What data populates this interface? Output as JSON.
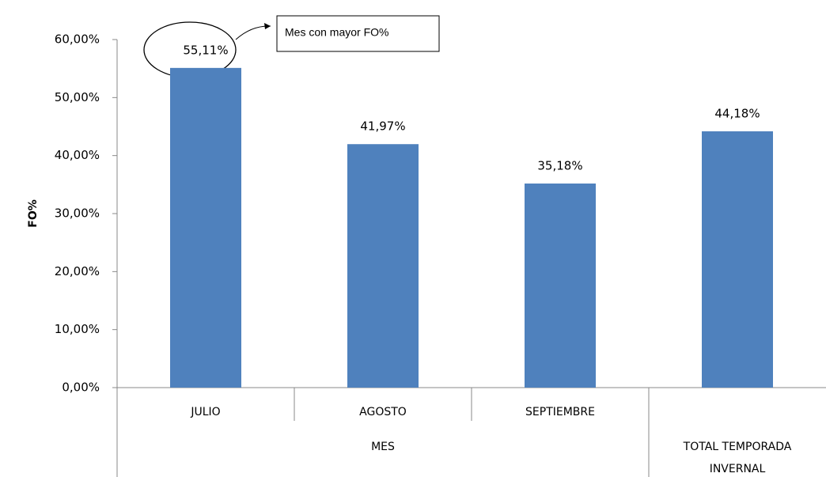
{
  "chart_data": {
    "type": "bar",
    "y_label": "FO%",
    "categories": [
      "JULIO",
      "AGOSTO",
      "SEPTIEMBRE",
      "TOTAL TEMPORADA INVERNAL"
    ],
    "group_label": "MES",
    "values": [
      55.11,
      41.97,
      35.18,
      44.18
    ],
    "value_labels": [
      "55,11%",
      "41,97%",
      "35,18%",
      "44,18%"
    ],
    "color": "#4f81bd",
    "ylim": [
      0,
      60
    ],
    "yticks": [
      {
        "value": 0,
        "label": "0,00%"
      },
      {
        "value": 10,
        "label": "10,00%"
      },
      {
        "value": 20,
        "label": "20,00%"
      },
      {
        "value": 30,
        "label": "30,00%"
      },
      {
        "value": 40,
        "label": "40,00%"
      },
      {
        "value": 50,
        "label": "50,00%"
      },
      {
        "value": 60,
        "label": "60,00%"
      }
    ],
    "annotation": "Mes con mayor FO%"
  }
}
